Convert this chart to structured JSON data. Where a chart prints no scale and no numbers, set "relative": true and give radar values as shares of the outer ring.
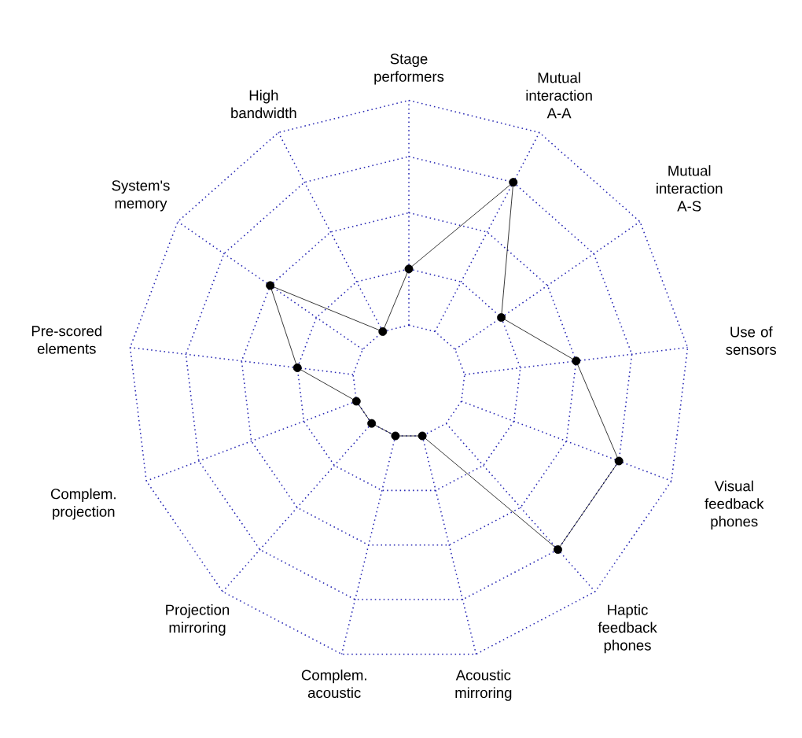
{
  "chart_data": {
    "type": "radar",
    "relative": true,
    "grid": true,
    "marker": "circle",
    "line_style": "solid",
    "categories": [
      "Stage performers",
      "Mutual interaction A-A",
      "Mutual interaction A-S",
      "Use of sensors",
      "Visual feedback phones",
      "Haptic feedback phones",
      "Acoustic mirroring",
      "Complem. acoustic",
      "Projection mirroring",
      "Complem. projection",
      "Pre-scored elements",
      "System's memory",
      "High bandwidth"
    ],
    "series": [
      {
        "color": "#000000",
        "values": [
          0.4,
          0.8,
          0.4,
          0.6,
          0.8,
          0.8,
          0.2,
          0.2,
          0.2,
          0.2,
          0.4,
          0.6,
          0.2
        ]
      }
    ]
  }
}
